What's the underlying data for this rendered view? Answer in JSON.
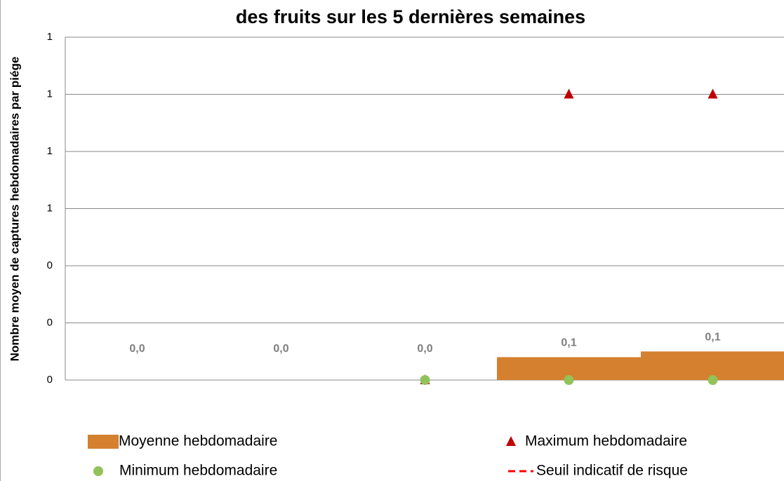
{
  "chart_data": {
    "type": "bar",
    "title": "des fruits sur les 5 dernières semaines",
    "y_label": "Nombre moyen de captures hebdomadaires par piége",
    "categories": [
      null,
      null,
      null,
      null,
      null
    ],
    "series": [
      {
        "name": "Moyenne hebdomadaire",
        "type": "bar",
        "color": "#d4802f",
        "values": [
          0,
          0,
          0,
          0.08,
          0.1
        ],
        "value_labels": [
          "0,0",
          "0,0",
          "0,0",
          "0,1",
          "0,1"
        ]
      },
      {
        "name": "Maximum hebdomadaire",
        "type": "triangle",
        "color": "#c00000",
        "values": [
          null,
          null,
          0,
          1,
          1
        ]
      },
      {
        "name": "Minimum hebdomadaire",
        "type": "circle",
        "color": "#92c25a",
        "values": [
          null,
          null,
          0,
          0,
          0
        ]
      },
      {
        "name": "Seuil indicatif de risque",
        "type": "dashed-line",
        "color": "#ff0000",
        "values": [
          null,
          null,
          null,
          null,
          null
        ]
      }
    ],
    "ylim": [
      0,
      1.2
    ],
    "yticks": [
      {
        "value": 0,
        "label": "0"
      },
      {
        "value": 0.2,
        "label": "0"
      },
      {
        "value": 0.4,
        "label": "0"
      },
      {
        "value": 0.6,
        "label": "1"
      },
      {
        "value": 0.8,
        "label": "1"
      },
      {
        "value": 1.0,
        "label": "1"
      },
      {
        "value": 1.2,
        "label": "1"
      }
    ],
    "grid": true,
    "legend": "bottom"
  }
}
